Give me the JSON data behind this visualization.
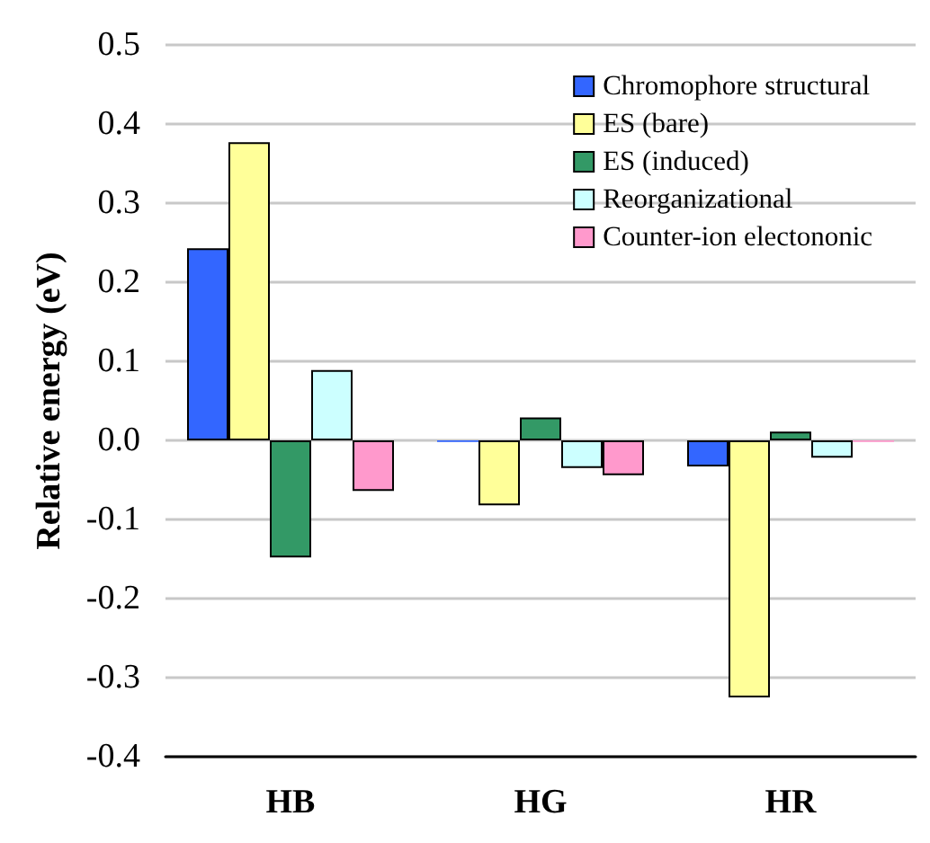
{
  "chart_data": {
    "type": "bar",
    "ylabel": "Relative energy (eV)",
    "categories": [
      "HB",
      "HG",
      "HR"
    ],
    "series": [
      {
        "name": "Chromophore structural",
        "color": "#3366ff",
        "values": [
          0.243,
          -0.002,
          -0.033
        ]
      },
      {
        "name": "ES (bare)",
        "color": "#ffff99",
        "values": [
          0.377,
          -0.082,
          -0.325
        ]
      },
      {
        "name": "ES (induced)",
        "color": "#339966",
        "values": [
          -0.148,
          0.029,
          0.011
        ]
      },
      {
        "name": "Reorganizational",
        "color": "#ccffff",
        "values": [
          0.089,
          -0.035,
          -0.022
        ]
      },
      {
        "name": "Counter-ion electononic",
        "color": "#ff99cc",
        "values": [
          -0.064,
          -0.044,
          -0.002
        ]
      }
    ],
    "ylim": [
      -0.4,
      0.5
    ],
    "yticks": [
      {
        "value": -0.4,
        "label": "-0.4"
      },
      {
        "value": -0.3,
        "label": "-0.3"
      },
      {
        "value": -0.2,
        "label": "-0.2"
      },
      {
        "value": -0.1,
        "label": "-0.1"
      },
      {
        "value": 0,
        "label": "0.0"
      },
      {
        "value": 0.1,
        "label": "0.1"
      },
      {
        "value": 0.2,
        "label": "0.2"
      },
      {
        "value": 0.3,
        "label": "0.3"
      },
      {
        "value": 0.4,
        "label": "0.4"
      },
      {
        "value": 0.5,
        "label": "0.5"
      }
    ],
    "grid": "y",
    "legend": "top right"
  }
}
